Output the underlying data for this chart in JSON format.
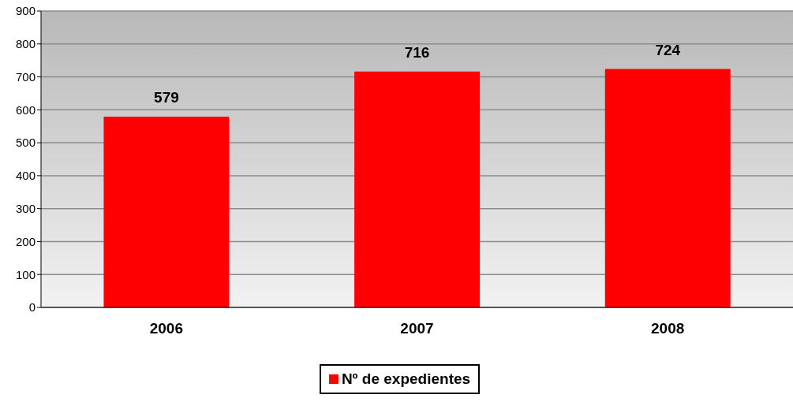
{
  "chart_data": {
    "type": "bar",
    "categories": [
      "2006",
      "2007",
      "2008"
    ],
    "series": [
      {
        "name": "Nº de expedientes",
        "color": "#ff0000",
        "values": [
          579,
          716,
          724
        ]
      }
    ],
    "ylim": [
      0,
      900
    ],
    "yticks": [
      0,
      100,
      200,
      300,
      400,
      500,
      600,
      700,
      800,
      900
    ],
    "grid": "y",
    "legend": "bottom",
    "data_labels": true
  }
}
